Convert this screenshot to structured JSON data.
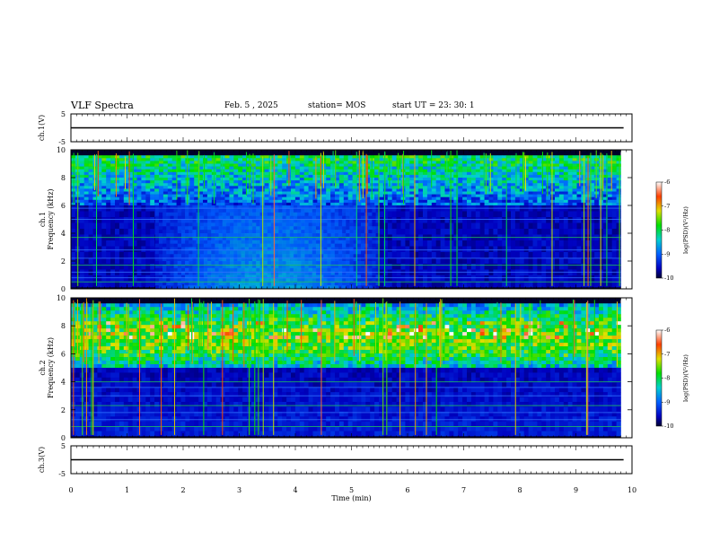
{
  "header": {
    "title": "VLF Spectra",
    "date": "Feb. 5 , 2025",
    "station": "station= MOS",
    "start": "start UT = 23: 30: 1"
  },
  "chart_data": [
    {
      "type": "line",
      "panel": "ch1-waveform",
      "ylabel": "ch.1(V)",
      "ylim": [
        -5,
        5
      ],
      "yticks": [
        "5",
        "-5"
      ],
      "x": [
        0,
        10
      ],
      "values": [
        0,
        0
      ]
    },
    {
      "type": "heatmap",
      "panel": "ch1-spectrogram",
      "ylabel": "ch.1 Frequency (kHz)",
      "ylim": [
        0,
        10
      ],
      "yticks": [
        "0",
        "2",
        "4",
        "6",
        "8",
        "10"
      ],
      "xlim": [
        0,
        9.8
      ],
      "colorbar": {
        "label": "log(PSD)(V²/Hz)",
        "ticks": [
          "-6",
          "-7",
          "-8",
          "-9",
          "-10"
        ],
        "range": [
          -10,
          -6
        ]
      },
      "lines_khz": [
        0.5,
        0.8,
        1.2,
        1.7,
        2.2,
        2.8,
        3.7,
        5.0,
        5.8
      ],
      "diffuse_band": {
        "t_range": [
          1.5,
          5.5
        ],
        "f_range_khz": [
          0,
          6
        ]
      },
      "upper_band_khz": [
        6,
        10
      ]
    },
    {
      "type": "heatmap",
      "panel": "ch2-spectrogram",
      "ylabel": "ch.2 Frequency (kHz)",
      "ylim": [
        0,
        10
      ],
      "yticks": [
        "0",
        "2",
        "4",
        "6",
        "8",
        "10"
      ],
      "xlim": [
        0,
        9.8
      ],
      "colorbar": {
        "label": "log(PSD)(V²/Hz)",
        "ticks": [
          "-6",
          "-7",
          "-8",
          "-9",
          "-10"
        ],
        "range": [
          -10,
          -6
        ]
      },
      "lines_khz": [
        0.8,
        1.3,
        1.8,
        2.3,
        3.0,
        3.6,
        4.0
      ],
      "upper_band_khz": [
        5,
        10
      ]
    },
    {
      "type": "line",
      "panel": "ch3-waveform",
      "ylabel": "ch.3(V)",
      "ylim": [
        -5,
        5
      ],
      "yticks": [
        "5",
        "-5"
      ],
      "x": [
        0,
        10
      ],
      "values": [
        0,
        0
      ]
    }
  ],
  "xaxis": {
    "label": "Time (min)",
    "xlim": [
      0,
      10
    ],
    "ticks": [
      "0",
      "1",
      "2",
      "3",
      "4",
      "5",
      "6",
      "7",
      "8",
      "9",
      "10"
    ]
  }
}
